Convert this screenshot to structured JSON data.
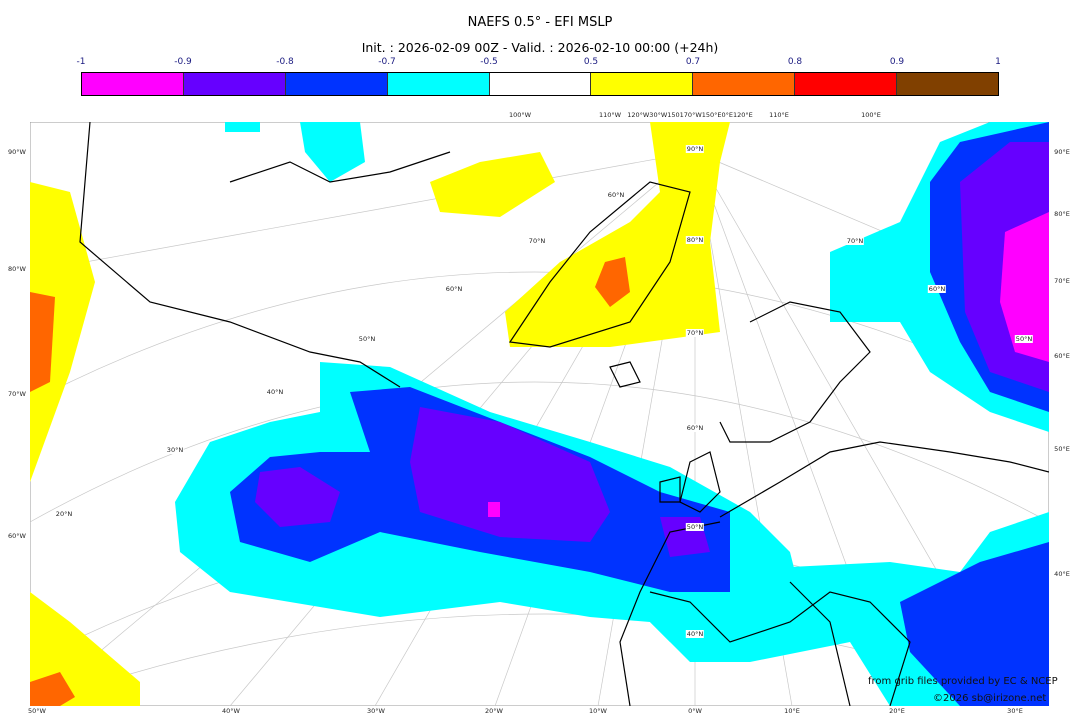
{
  "title": "NAEFS 0.5° - EFI MSLP",
  "subtitle": "Init. : 2026-02-09 00Z - Valid. : 2026-02-10 00:00 (+24h)",
  "colorbar": {
    "ticks": [
      "-1",
      "-0.9",
      "-0.8",
      "-0.7",
      "-0.5",
      "0.5",
      "0.7",
      "0.8",
      "0.9",
      "1"
    ],
    "colors": [
      "#ff00ff",
      "#6600ff",
      "#0033ff",
      "#00ffff",
      "#ffffff",
      "#ffff00",
      "#ff6600",
      "#ff0000",
      "#804000"
    ]
  },
  "axes": {
    "left": [
      "90°W",
      "80°W",
      "70°W",
      "60°W"
    ],
    "bottom": [
      "50°W",
      "40°W",
      "30°W",
      "20°W",
      "10°W",
      "0°W",
      "10°E",
      "20°E",
      "30°E"
    ],
    "right": [
      "90°E",
      "80°E",
      "70°E",
      "60°E",
      "50°E",
      "40°E"
    ],
    "top": [
      "100°W",
      "110°W",
      "120°W30°W150170°W150°E0°E120°E",
      "110°E",
      "100°E"
    ]
  },
  "lat_labels": [
    "90°N",
    "80°N",
    "70°N",
    "60°N",
    "50°N",
    "40°N",
    "60°N",
    "70°N",
    "60°N",
    "50°N",
    "40°N",
    "30°N",
    "20°N",
    "70°N",
    "60°N",
    "50°N"
  ],
  "credits": {
    "source": "from grib files provided by EC & NCEP",
    "copyright": "©2026 sb@irizone.net"
  }
}
